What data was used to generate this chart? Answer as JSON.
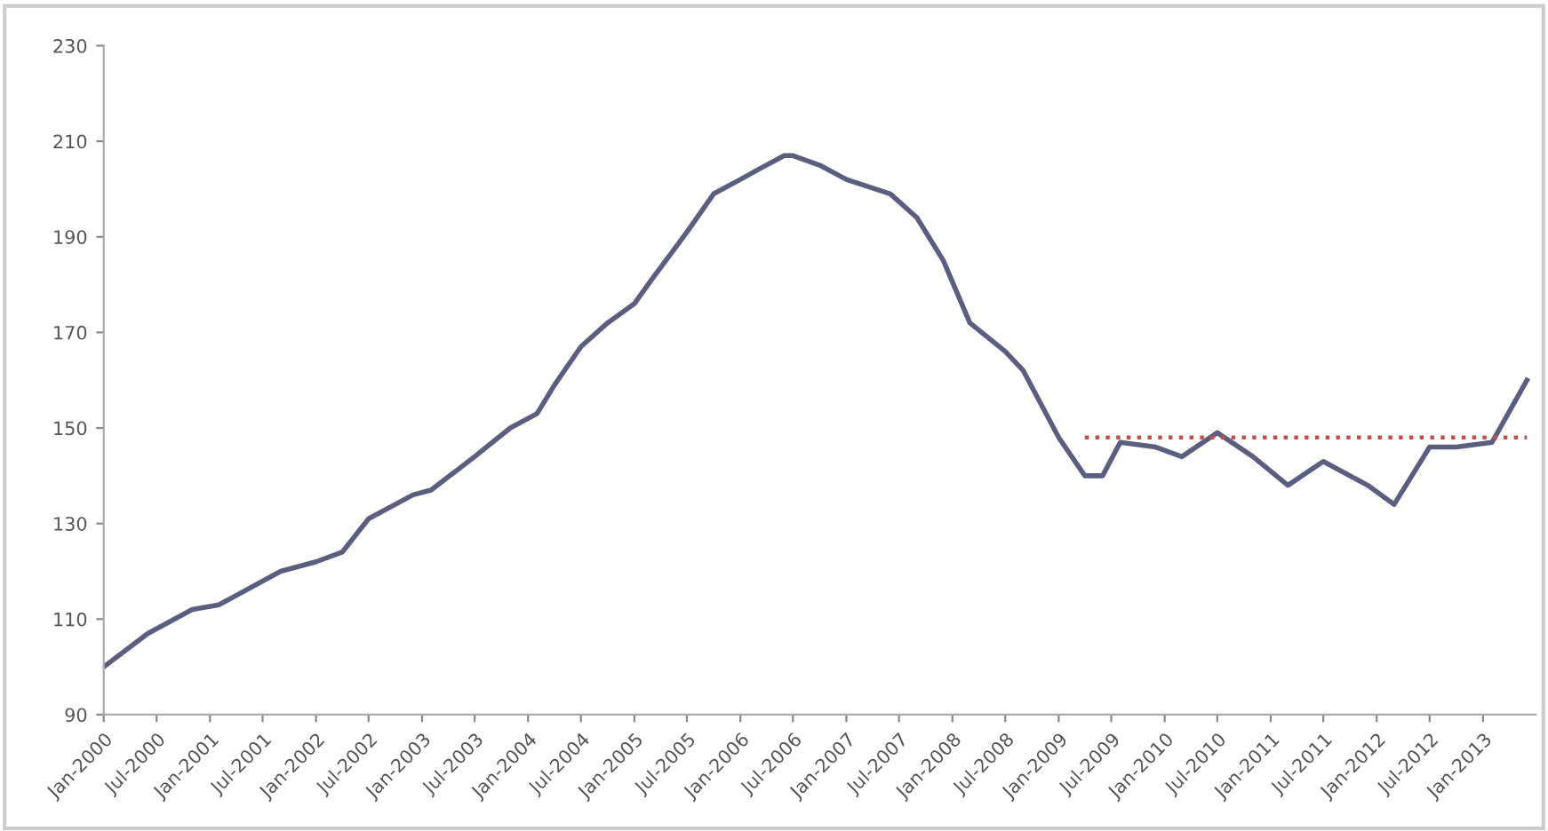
{
  "chart_data": {
    "type": "line",
    "series": [
      {
        "color": "#5a5f80",
        "line_style": "solid",
        "x": [
          "2000-01",
          "2000-06",
          "2000-11",
          "2001-02",
          "2001-09",
          "2002-01",
          "2002-04",
          "2002-07",
          "2002-12",
          "2003-02",
          "2003-07",
          "2003-11",
          "2004-02",
          "2004-04",
          "2004-07",
          "2004-10",
          "2005-01",
          "2005-03",
          "2005-07",
          "2005-10",
          "2006-01",
          "2006-03",
          "2006-06",
          "2006-07",
          "2006-10",
          "2007-01",
          "2007-06",
          "2007-09",
          "2007-12",
          "2008-03",
          "2008-07",
          "2008-09",
          "2009-01",
          "2009-04",
          "2009-06",
          "2009-08",
          "2009-12",
          "2010-03",
          "2010-07",
          "2010-11",
          "2011-03",
          "2011-07",
          "2011-12",
          "2012-03",
          "2012-07",
          "2012-10",
          "2013-02",
          "2013-06"
        ],
        "values": [
          100,
          107,
          112,
          113,
          120,
          122,
          124,
          131,
          136,
          137,
          144,
          150,
          153,
          159,
          167,
          172,
          176,
          181,
          191,
          199,
          202,
          204,
          207,
          207,
          205,
          202,
          199,
          194,
          185,
          172,
          166,
          162,
          148,
          140,
          140,
          147,
          146,
          144,
          149,
          144,
          138,
          143,
          138,
          134,
          146,
          146,
          147,
          160
        ]
      },
      {
        "color": "#c0504d",
        "line_style": "dotted",
        "x": [
          "2009-04",
          "2013-06"
        ],
        "values": [
          148,
          148
        ]
      }
    ],
    "xlim": [
      "2000-01",
      "2013-07"
    ],
    "xticks": [
      {
        "value": "2000-01",
        "label": "Jan-2000"
      },
      {
        "value": "2000-07",
        "label": "Jul-2000"
      },
      {
        "value": "2001-01",
        "label": "Jan-2001"
      },
      {
        "value": "2001-07",
        "label": "Jul-2001"
      },
      {
        "value": "2002-01",
        "label": "Jan-2002"
      },
      {
        "value": "2002-07",
        "label": "Jul-2002"
      },
      {
        "value": "2003-01",
        "label": "Jan-2003"
      },
      {
        "value": "2003-07",
        "label": "Jul-2003"
      },
      {
        "value": "2004-01",
        "label": "Jan-2004"
      },
      {
        "value": "2004-07",
        "label": "Jul-2004"
      },
      {
        "value": "2005-01",
        "label": "Jan-2005"
      },
      {
        "value": "2005-07",
        "label": "Jul-2005"
      },
      {
        "value": "2006-01",
        "label": "Jan-2006"
      },
      {
        "value": "2006-07",
        "label": "Jul-2006"
      },
      {
        "value": "2007-01",
        "label": "Jan-2007"
      },
      {
        "value": "2007-07",
        "label": "Jul-2007"
      },
      {
        "value": "2008-01",
        "label": "Jan-2008"
      },
      {
        "value": "2008-07",
        "label": "Jul-2008"
      },
      {
        "value": "2009-01",
        "label": "Jan-2009"
      },
      {
        "value": "2009-07",
        "label": "Jul-2009"
      },
      {
        "value": "2010-01",
        "label": "Jan-2010"
      },
      {
        "value": "2010-07",
        "label": "Jul-2010"
      },
      {
        "value": "2011-01",
        "label": "Jan-2011"
      },
      {
        "value": "2011-07",
        "label": "Jul-2011"
      },
      {
        "value": "2012-01",
        "label": "Jan-2012"
      },
      {
        "value": "2012-07",
        "label": "Jul-2012"
      },
      {
        "value": "2013-01",
        "label": "Jan-2013"
      }
    ],
    "ylim": [
      90,
      230
    ],
    "yticks": [
      90,
      110,
      130,
      150,
      170,
      190,
      210,
      230
    ],
    "grid": false,
    "legend": false,
    "marker": "none"
  }
}
